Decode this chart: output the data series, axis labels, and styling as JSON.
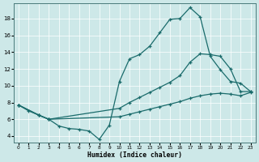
{
  "title": "",
  "xlabel": "Humidex (Indice chaleur)",
  "background_color": "#cde8e8",
  "line_color": "#1a6b6b",
  "xlim": [
    -0.5,
    23.5
  ],
  "ylim": [
    3.2,
    19.8
  ],
  "xticks": [
    0,
    1,
    2,
    3,
    4,
    5,
    6,
    7,
    8,
    9,
    10,
    11,
    12,
    13,
    14,
    15,
    16,
    17,
    18,
    19,
    20,
    21,
    22,
    23
  ],
  "yticks": [
    4,
    6,
    8,
    10,
    12,
    14,
    16,
    18
  ],
  "line1_x": [
    0,
    1,
    2,
    3,
    4,
    5,
    6,
    7,
    8,
    9,
    10,
    11,
    12,
    13,
    14,
    15,
    16,
    17,
    18,
    19,
    20,
    21,
    22,
    23
  ],
  "line1_y": [
    7.7,
    7.0,
    6.5,
    6.0,
    5.2,
    4.9,
    4.8,
    4.6,
    3.6,
    5.3,
    10.5,
    13.2,
    13.7,
    14.7,
    16.3,
    17.9,
    18.0,
    19.3,
    18.2,
    13.5,
    11.9,
    10.5,
    10.3,
    9.3
  ],
  "line2_x": [
    0,
    2,
    3,
    10,
    11,
    12,
    13,
    14,
    15,
    16,
    17,
    18,
    19,
    20,
    21,
    22,
    23
  ],
  "line2_y": [
    7.7,
    6.5,
    6.0,
    7.3,
    8.0,
    8.6,
    9.2,
    9.8,
    10.4,
    11.2,
    12.8,
    13.8,
    13.7,
    13.5,
    12.0,
    9.3,
    9.3
  ],
  "line3_x": [
    0,
    2,
    3,
    10,
    11,
    12,
    13,
    14,
    15,
    16,
    17,
    18,
    19,
    20,
    21,
    22,
    23
  ],
  "line3_y": [
    7.7,
    6.5,
    6.0,
    6.3,
    6.6,
    6.9,
    7.2,
    7.5,
    7.8,
    8.1,
    8.5,
    8.8,
    9.0,
    9.1,
    9.0,
    8.8,
    9.2
  ]
}
